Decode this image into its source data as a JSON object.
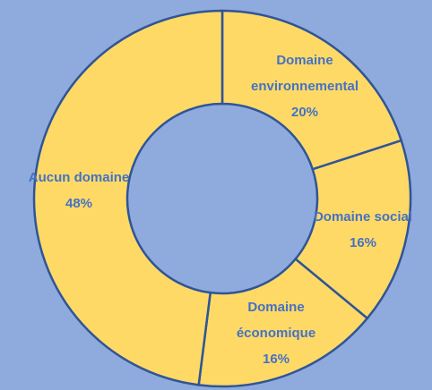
{
  "chart_data": {
    "type": "donut",
    "categories": [
      "Domaine environnemental",
      "Domaine social",
      "Domaine économique",
      "Aucun domaine"
    ],
    "values": [
      20,
      16,
      16,
      48
    ],
    "value_labels": [
      "20%",
      "16%",
      "16%",
      "48%"
    ],
    "colors": [
      "#ffd966",
      "#ffd966",
      "#ffd966",
      "#ffd966"
    ]
  }
}
